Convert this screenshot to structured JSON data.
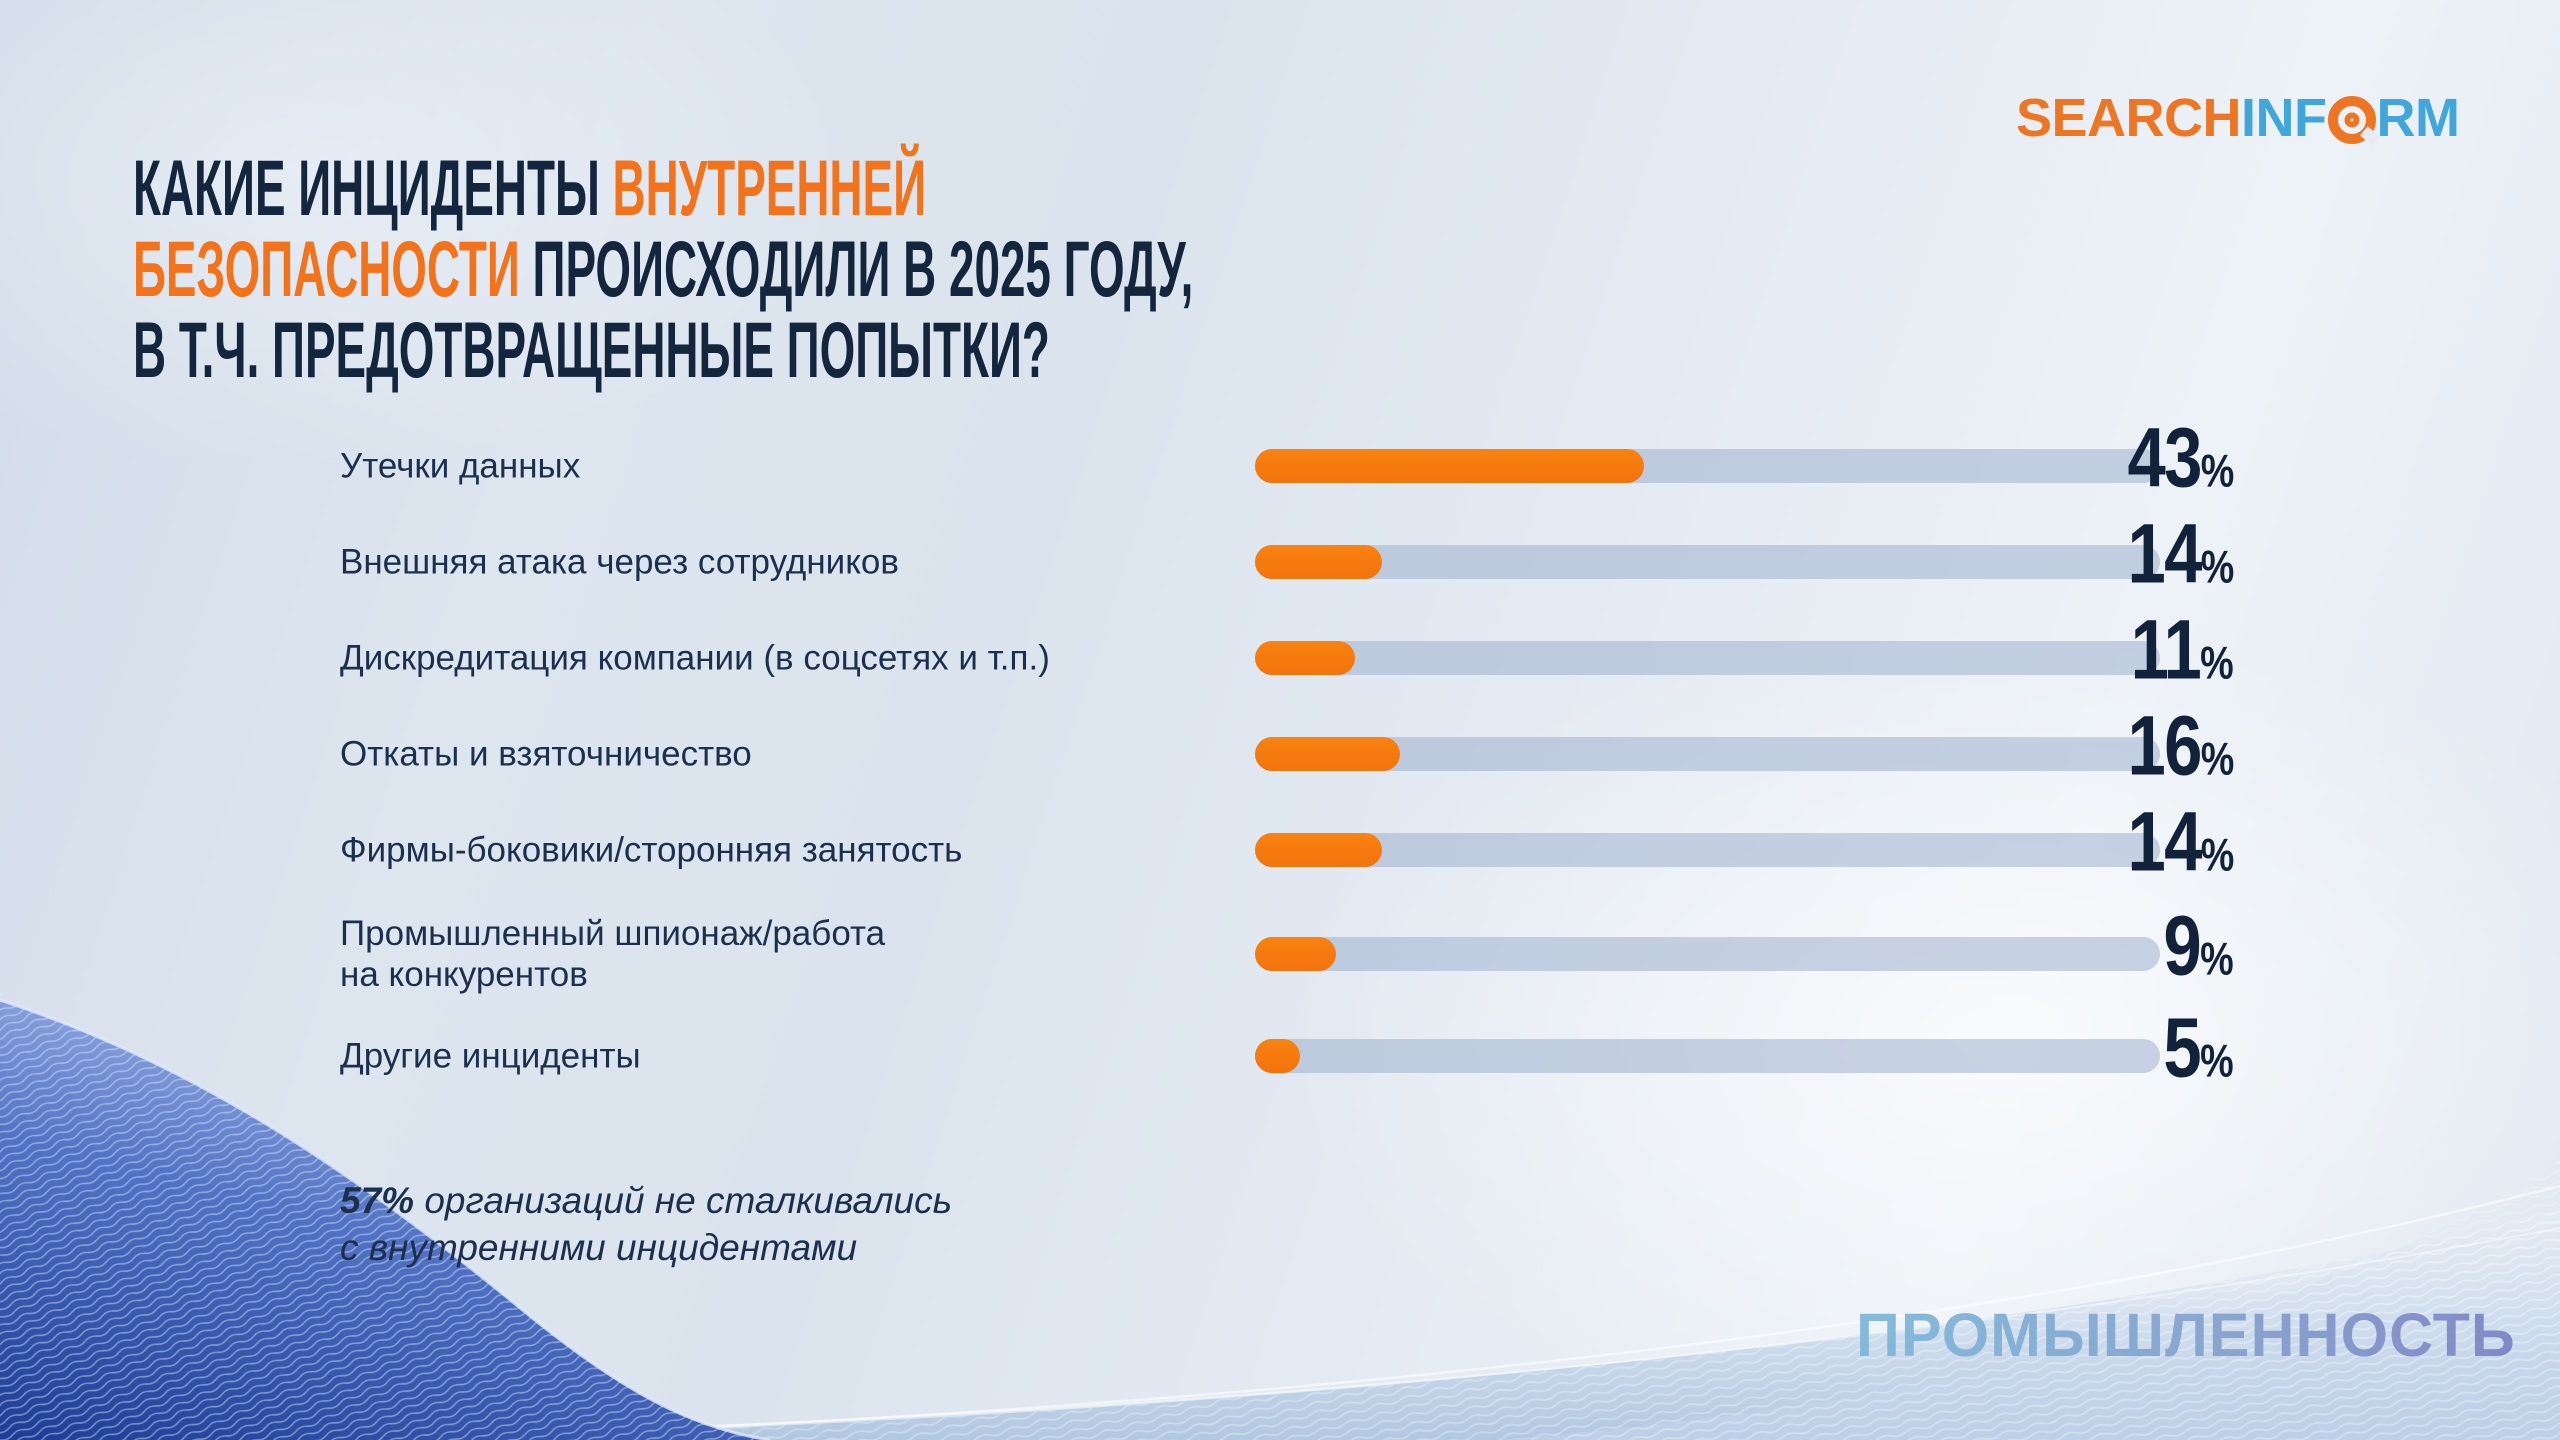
{
  "header": {
    "title_lines": [
      [
        {
          "text": "КАКИЕ ИНЦИДЕНТЫ ",
          "accent": false
        },
        {
          "text": "ВНУТРЕННЕЙ",
          "accent": true
        }
      ],
      [
        {
          "text": "БЕЗОПАСНОСТИ",
          "accent": true
        },
        {
          "text": " ПРОИСХОДИЛИ В 2025 ГОДУ,",
          "accent": false
        }
      ],
      [
        {
          "text": "В Т.Ч. ПРЕДОТВРАЩЕННЫЕ ПОПЫТКИ?",
          "accent": false
        }
      ]
    ]
  },
  "logo": {
    "part_search": "SEARCH",
    "part_inf": "INF",
    "part_rm": "RM",
    "o_icon": "orange-ring-target-icon",
    "color_orange": "#EE7623",
    "color_blue": "#41A6DB"
  },
  "chart_data": {
    "type": "bar",
    "orientation": "horizontal",
    "unit": "%",
    "xlim": [
      0,
      100
    ],
    "categories": [
      "Утечки данных",
      "Внешняя атака через сотрудников",
      "Дискредитация компании (в соцсетях и т.п.)",
      "Откаты и взяточничество",
      "Фирмы-боковики/сторонняя занятость",
      "Промышленный шпионаж/работа\nна конкурентов",
      "Другие инциденты"
    ],
    "values": [
      43,
      14,
      11,
      16,
      14,
      9,
      5
    ],
    "bar_color": "#F5790E",
    "track_color": "#B6C4D8",
    "value_color": "#12223B",
    "grid": false,
    "legend": false
  },
  "note": {
    "lead": "57%",
    "rest": " организаций не сталкивались\nс внутренними инцидентами"
  },
  "footer": {
    "industry_label": "ПРОМЫШЛЕННОСТЬ"
  },
  "colors": {
    "title_dark": "#14253E",
    "title_accent": "#F4731A",
    "background": "#DDE5EE",
    "wave_dark_blue": "#1D3C95",
    "wave_light_blue": "#B5CDE3"
  }
}
